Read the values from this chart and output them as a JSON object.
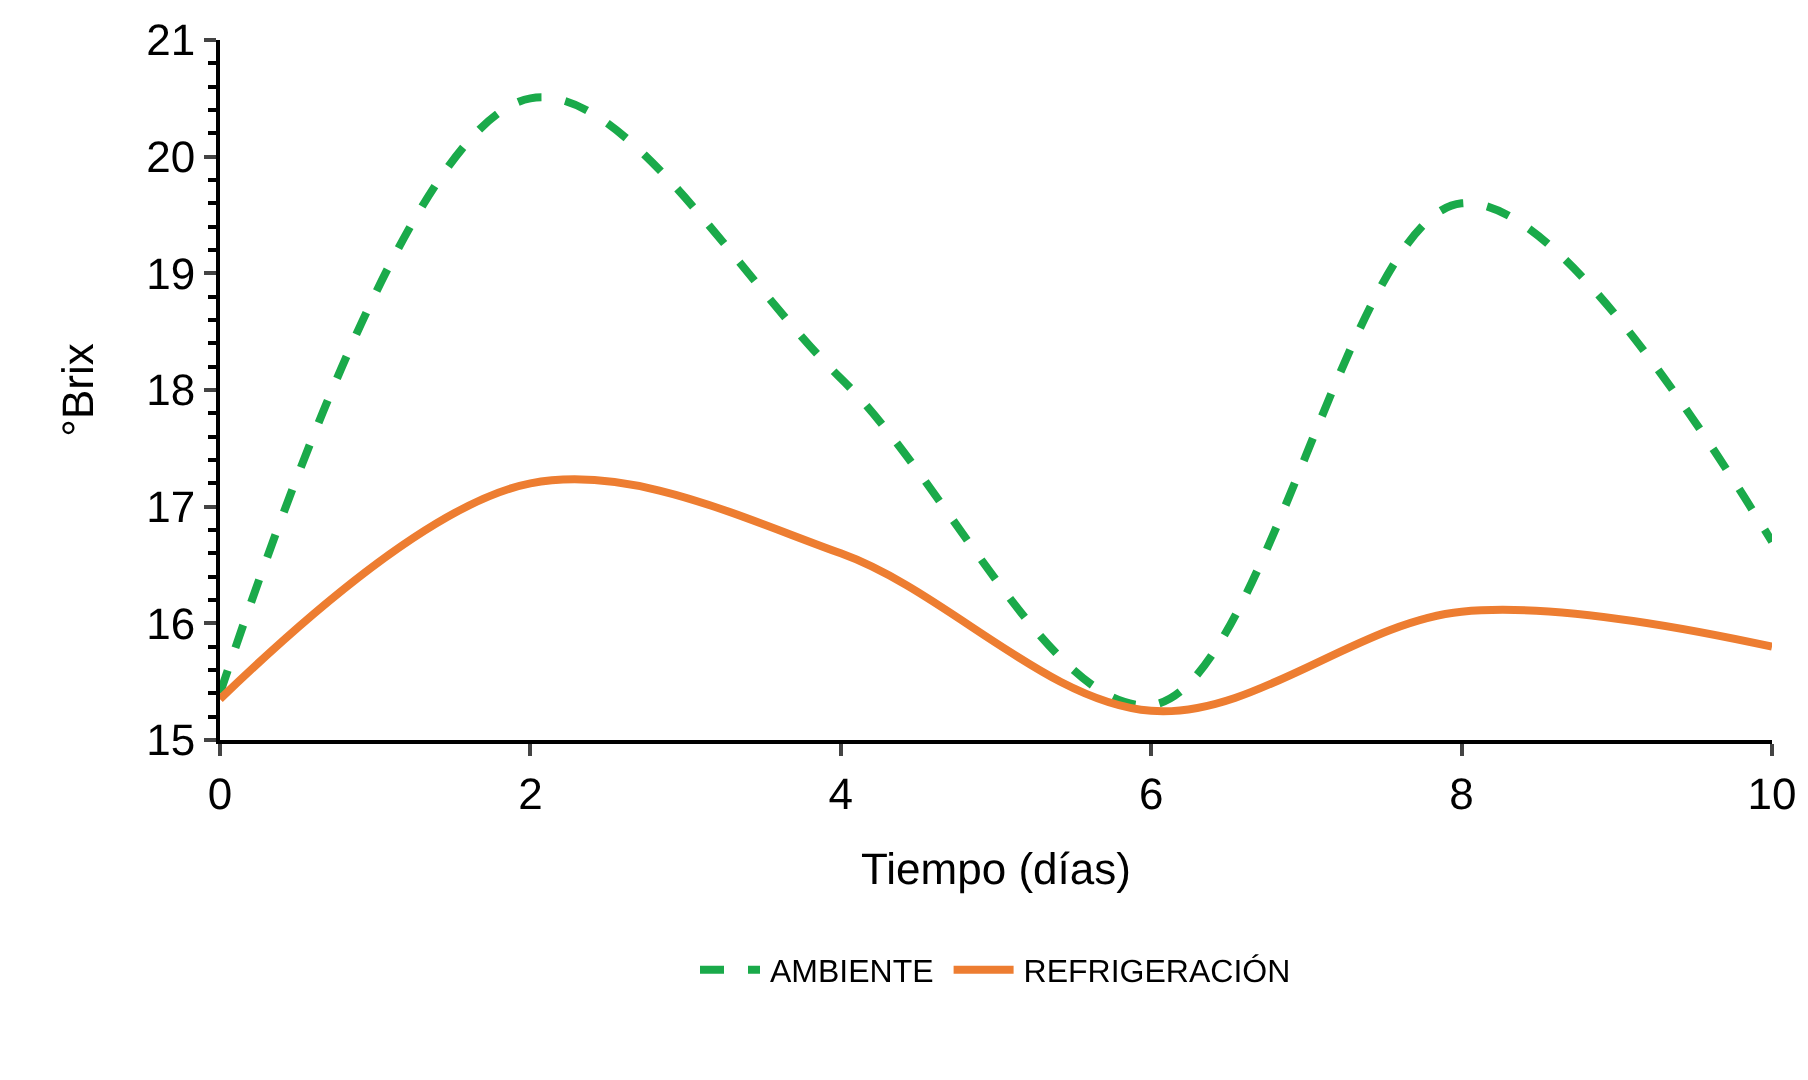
{
  "chart_data": {
    "type": "line",
    "xlabel": "Tiempo (días)",
    "ylabel": "°Brix",
    "x": [
      0,
      2,
      4,
      6,
      8,
      10
    ],
    "series": [
      {
        "name": "AMBIENTE",
        "color": "#1aaa4a",
        "line_style": "dashed",
        "values": [
          15.4,
          20.5,
          18.1,
          15.3,
          19.6,
          16.7
        ]
      },
      {
        "name": "REFRIGERACIÓN",
        "color": "#ed7d31",
        "line_style": "solid",
        "values": [
          15.35,
          17.2,
          16.6,
          15.25,
          16.1,
          15.8
        ]
      }
    ],
    "xlim": [
      0,
      10
    ],
    "xticks": [
      0,
      2,
      4,
      6,
      8,
      10
    ],
    "ylim": [
      15,
      21
    ],
    "yticks": [
      15,
      16,
      17,
      18,
      19,
      20,
      21
    ],
    "grid": false,
    "legend": "bottom",
    "marker": "none"
  }
}
